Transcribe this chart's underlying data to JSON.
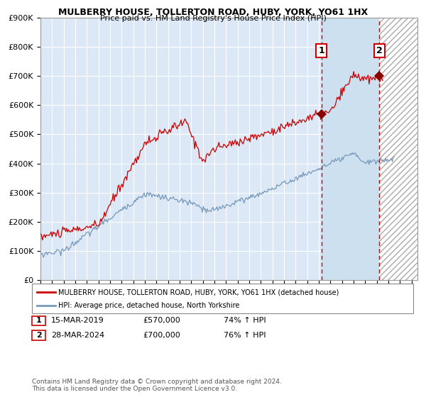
{
  "title": "MULBERRY HOUSE, TOLLERTON ROAD, HUBY, YORK, YO61 1HX",
  "subtitle": "Price paid vs. HM Land Registry's House Price Index (HPI)",
  "legend_line1": "MULBERRY HOUSE, TOLLERTON ROAD, HUBY, YORK, YO61 1HX (detached house)",
  "legend_line2": "HPI: Average price, detached house, North Yorkshire",
  "annotation1": {
    "label": "1",
    "date": "15-MAR-2019",
    "price": "£570,000",
    "pct": "74% ↑ HPI"
  },
  "annotation2": {
    "label": "2",
    "date": "28-MAR-2024",
    "price": "£700,000",
    "pct": "76% ↑ HPI"
  },
  "red_line_color": "#cc0000",
  "blue_line_color": "#7799bb",
  "marker_color": "#880000",
  "vline_color": "#cc0000",
  "bg_color": "#dce8f5",
  "highlight_color": "#cce0f0",
  "grid_color": "#ffffff",
  "ylim": [
    0,
    900000
  ],
  "yticks": [
    0,
    100000,
    200000,
    300000,
    400000,
    500000,
    600000,
    700000,
    800000,
    900000
  ],
  "xlim_start": 1995.0,
  "xlim_end": 2027.5,
  "vline1_x": 2019.21,
  "vline2_x": 2024.21,
  "sale1_red_x": 2019.21,
  "sale1_red_y": 570000,
  "sale2_red_x": 2024.21,
  "sale2_red_y": 700000,
  "footnote": "Contains HM Land Registry data © Crown copyright and database right 2024.\nThis data is licensed under the Open Government Licence v3.0."
}
